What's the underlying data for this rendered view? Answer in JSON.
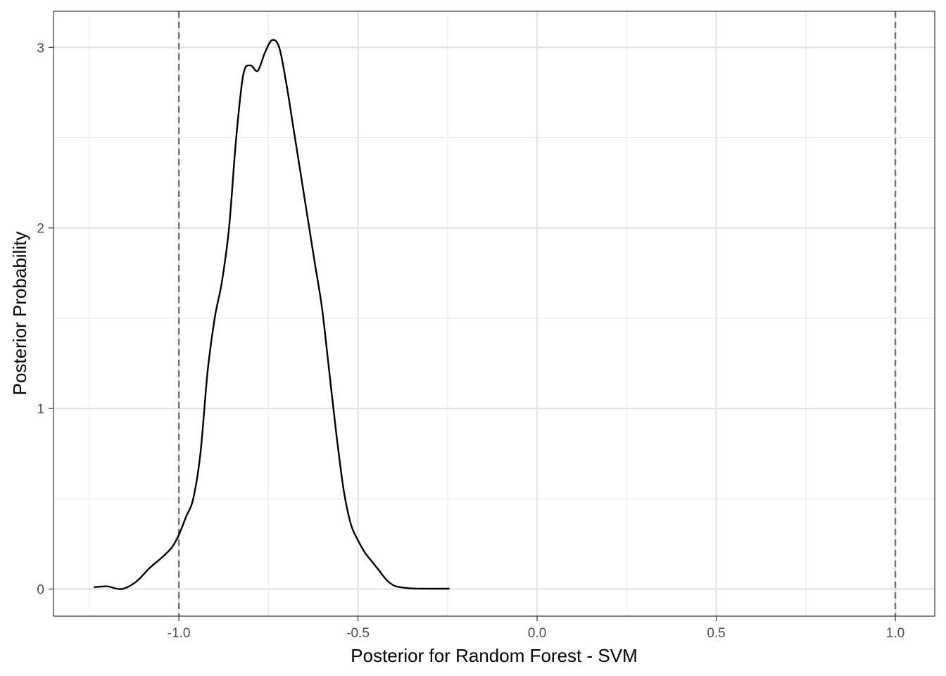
{
  "chart_data": {
    "type": "line",
    "title": "",
    "xlabel": "Posterior for Random Forest - SVM",
    "ylabel": "Posterior Probability",
    "xlim": [
      -1.35,
      1.11
    ],
    "ylim": [
      -0.15,
      3.2
    ],
    "x_ticks": [
      -1.0,
      -0.5,
      0.0,
      0.5,
      1.0
    ],
    "x_tick_labels": [
      "-1.0",
      "-0.5",
      "0.0",
      "0.5",
      "1.0"
    ],
    "x_minor_ticks": [
      -1.25,
      -0.75,
      -0.25,
      0.25,
      0.75
    ],
    "y_ticks": [
      0,
      1,
      2,
      3
    ],
    "y_tick_labels": [
      "0",
      "1",
      "2",
      "3"
    ],
    "y_minor_ticks": [
      0.5,
      1.5,
      2.5
    ],
    "grid": true,
    "legend": "none",
    "reference_lines": [
      {
        "x": -1.0,
        "style": "dashed"
      },
      {
        "x": 1.0,
        "style": "dashed"
      }
    ],
    "series": [
      {
        "x": [
          -1.237,
          -1.2,
          -1.16,
          -1.12,
          -1.08,
          -1.05,
          -1.02,
          -1.0,
          -0.98,
          -0.96,
          -0.94,
          -0.92,
          -0.9,
          -0.88,
          -0.86,
          -0.84,
          -0.82,
          -0.8,
          -0.78,
          -0.76,
          -0.74,
          -0.72,
          -0.7,
          -0.68,
          -0.66,
          -0.64,
          -0.62,
          -0.6,
          -0.58,
          -0.56,
          -0.54,
          -0.52,
          -0.5,
          -0.48,
          -0.46,
          -0.44,
          -0.42,
          -0.4,
          -0.38,
          -0.36,
          -0.34,
          -0.31,
          -0.28,
          -0.245
        ],
        "y": [
          0.01,
          0.015,
          0.0,
          0.04,
          0.12,
          0.17,
          0.23,
          0.3,
          0.4,
          0.5,
          0.75,
          1.2,
          1.5,
          1.7,
          2.0,
          2.5,
          2.85,
          2.9,
          2.87,
          2.97,
          3.04,
          3.0,
          2.8,
          2.55,
          2.3,
          2.05,
          1.8,
          1.55,
          1.2,
          0.85,
          0.55,
          0.36,
          0.27,
          0.2,
          0.15,
          0.1,
          0.05,
          0.02,
          0.01,
          0.005,
          0.003,
          0.002,
          0.002,
          0.002
        ],
        "color": "#000000"
      }
    ]
  }
}
